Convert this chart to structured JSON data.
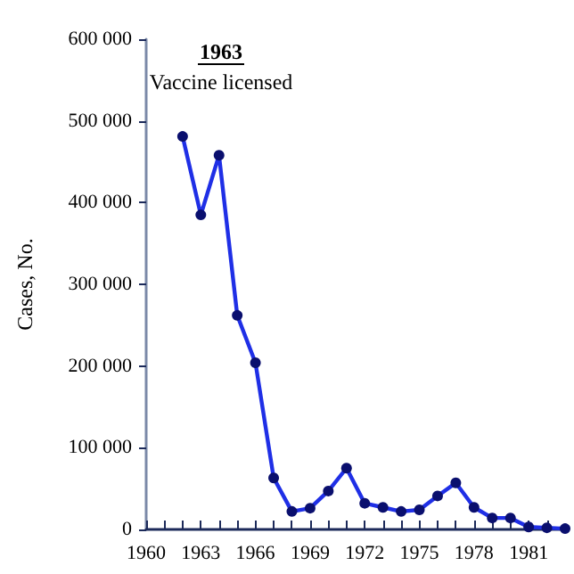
{
  "chart_data": {
    "type": "line",
    "ylabel": "Cases, No.",
    "x": [
      1962,
      1963,
      1964,
      1965,
      1966,
      1967,
      1968,
      1969,
      1970,
      1971,
      1972,
      1973,
      1974,
      1975,
      1976,
      1977,
      1978,
      1979,
      1980,
      1981,
      1982,
      1983
    ],
    "series": [
      {
        "color": "#1f2fe6",
        "values": [
          481000,
          385000,
          458000,
          262000,
          204000,
          63000,
          22000,
          26000,
          47000,
          75000,
          32000,
          27000,
          22000,
          24000,
          41000,
          57000,
          27000,
          14000,
          14000,
          3000,
          2000,
          1000
        ]
      }
    ],
    "xlim": [
      1960,
      1983
    ],
    "xticks": [
      1960,
      {
        "value": 1961,
        "label": null
      },
      {
        "value": 1962,
        "label": null
      },
      1963,
      {
        "value": 1964,
        "label": null
      },
      {
        "value": 1965,
        "label": null
      },
      1966,
      {
        "value": 1967,
        "label": null
      },
      {
        "value": 1968,
        "label": null
      },
      1969,
      {
        "value": 1970,
        "label": null
      },
      {
        "value": 1971,
        "label": null
      },
      1972,
      {
        "value": 1973,
        "label": null
      },
      {
        "value": 1974,
        "label": null
      },
      1975,
      {
        "value": 1976,
        "label": null
      },
      {
        "value": 1977,
        "label": null
      },
      1978,
      {
        "value": 1979,
        "label": null
      },
      {
        "value": 1980,
        "label": null
      },
      1981,
      {
        "value": 1982,
        "label": null
      }
    ],
    "ylim": [
      0,
      600000
    ],
    "yticks": [
      0,
      {
        "value": 100000,
        "label": "100 000"
      },
      {
        "value": 200000,
        "label": "200 000"
      },
      {
        "value": 300000,
        "label": "300 000"
      },
      {
        "value": 400000,
        "label": "400 000"
      },
      {
        "value": 500000,
        "label": "500 000"
      },
      {
        "value": 600000,
        "label": "600 000"
      }
    ],
    "annotations": [
      "1963",
      "Vaccine licensed"
    ],
    "marker": "circle",
    "line_style": "solid",
    "grid": false
  }
}
